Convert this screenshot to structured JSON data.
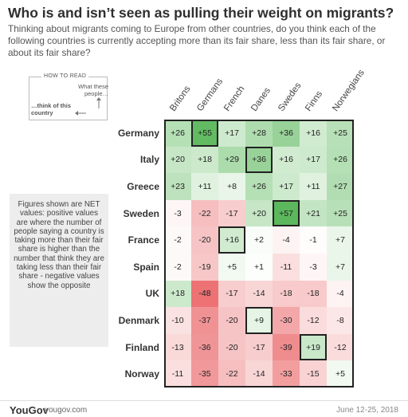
{
  "title": "Who is and isn’t seen as pulling their weight on migrants?",
  "subtitle": "Thinking about migrants coming to Europe from other countries, do you think each of the following countries is currently accepting more than its fair share, less than its fair share, or about its fair share?",
  "how_to_read": {
    "title": "HOW TO READ",
    "what_people": "What these people…",
    "think_of": "…think of this country"
  },
  "note": "Figures shown are NET values: positive values are where the number of people saying a country is taking more than their fair share is higher than the number that think they are taking less than their fair share - negative values show the opposite",
  "footer": {
    "logo": "YouGov",
    "url": "yougov.com",
    "date": "June 12-25, 2018"
  },
  "colors": {
    "positive": "#5cb85c",
    "negative": "#e8575a",
    "neutral": "#ffffff"
  },
  "chart_data": {
    "type": "heatmap",
    "columns": [
      "Britons",
      "Germans",
      "French",
      "Danes",
      "Swedes",
      "Finns",
      "Norwegians"
    ],
    "rows": [
      "Germany",
      "Italy",
      "Greece",
      "Sweden",
      "France",
      "Spain",
      "UK",
      "Denmark",
      "Finland",
      "Norway"
    ],
    "values": [
      [
        26,
        55,
        17,
        28,
        36,
        16,
        25
      ],
      [
        20,
        18,
        29,
        36,
        16,
        17,
        26
      ],
      [
        23,
        11,
        8,
        26,
        17,
        11,
        27
      ],
      [
        -3,
        -22,
        -17,
        20,
        57,
        21,
        25
      ],
      [
        -2,
        -20,
        16,
        2,
        -4,
        -1,
        7
      ],
      [
        -2,
        -19,
        5,
        1,
        -11,
        -3,
        7
      ],
      [
        18,
        -48,
        -17,
        -14,
        -18,
        -18,
        -4
      ],
      [
        -10,
        -37,
        -20,
        9,
        -30,
        -12,
        -8
      ],
      [
        -13,
        -36,
        -20,
        -17,
        -39,
        19,
        -12
      ],
      [
        -11,
        -35,
        -22,
        -14,
        -33,
        -15,
        5
      ]
    ],
    "labels": [
      [
        "+26",
        "+55",
        "+17",
        "+28",
        "+36",
        "+16",
        "+25"
      ],
      [
        "+20",
        "+18",
        "+29",
        "+36",
        "+16",
        "+17",
        "+26"
      ],
      [
        "+23",
        "+11",
        "+8",
        "+26",
        "+17",
        "+11",
        "+27"
      ],
      [
        "-3",
        "-22",
        "-17",
        "+20",
        "+57",
        "+21",
        "+25"
      ],
      [
        "-2",
        "-20",
        "+16",
        "+2",
        "-4",
        "-1",
        "+7"
      ],
      [
        "-2",
        "-19",
        "+5",
        "+1",
        "-11",
        "-3",
        "+7"
      ],
      [
        "+18",
        "-48",
        "-17",
        "-14",
        "-18",
        "-18",
        "-4"
      ],
      [
        "-10",
        "-37",
        "-20",
        "+9",
        "-30",
        "-12",
        "-8"
      ],
      [
        "-13",
        "-36",
        "-20",
        "-17",
        "-39",
        "+19",
        "-12"
      ],
      [
        "-11",
        "-35",
        "-22",
        "-14",
        "-33",
        "-15",
        "+5"
      ]
    ],
    "highlighted": [
      [
        0,
        1
      ],
      [
        3,
        4
      ],
      [
        1,
        3
      ],
      [
        4,
        2
      ],
      [
        8,
        5
      ],
      [
        7,
        3
      ]
    ]
  }
}
